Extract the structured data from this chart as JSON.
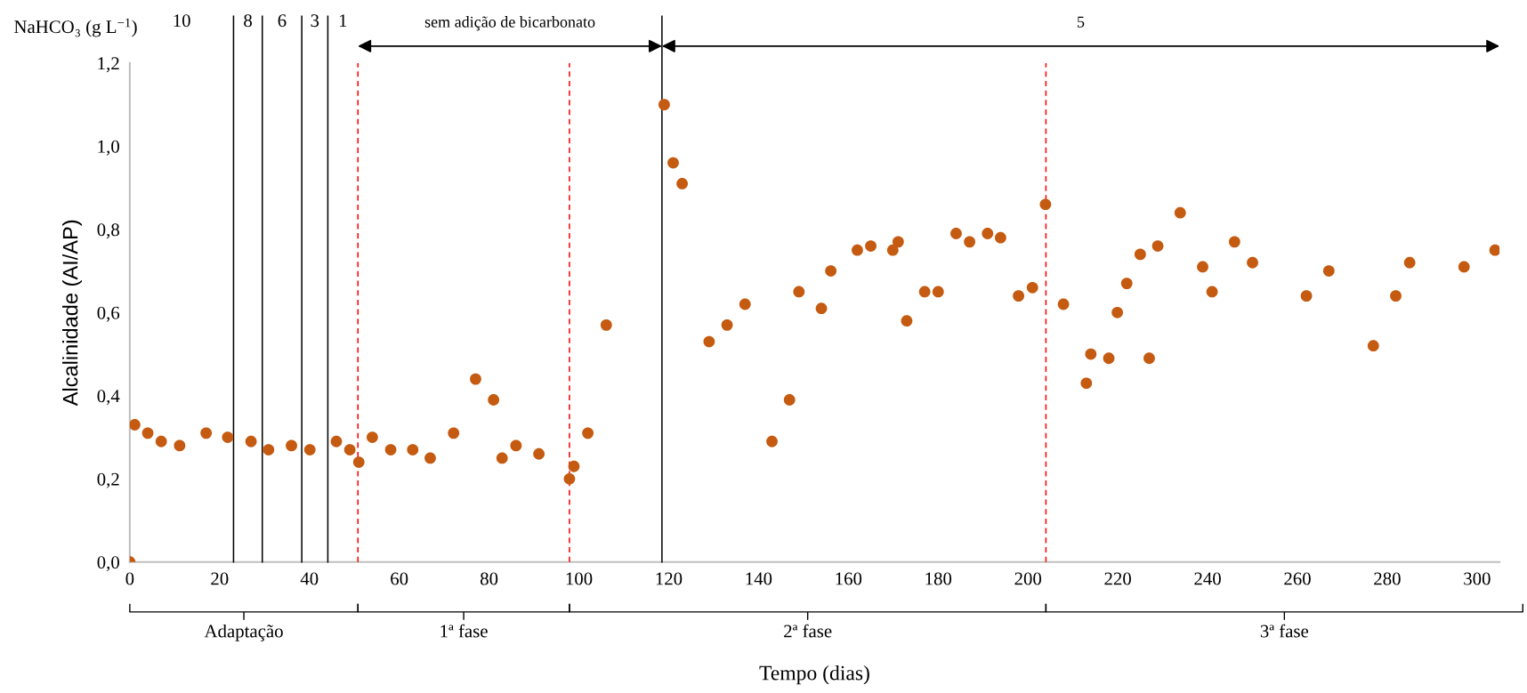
{
  "chart_data": {
    "type": "scatter",
    "xlabel": "Tempo (dias)",
    "ylabel": "Alcalinidade (AI/AP)",
    "x": [
      0,
      1.1,
      4.0,
      7.0,
      11.1,
      17.0,
      21.8,
      27.0,
      30.9,
      36.0,
      40.1,
      46.0,
      49.0,
      51.0,
      54.0,
      58.1,
      63.0,
      66.9,
      72.1,
      77.0,
      81.0,
      82.9,
      86.0,
      91.1,
      97.9,
      98.9,
      102.0,
      106.1,
      119.0,
      121.0,
      123.0,
      129.0,
      133.0,
      137.0,
      143.0,
      146.9,
      149.0,
      154.0,
      156.1,
      162.0,
      165.0,
      169.9,
      171.1,
      173.0,
      177.0,
      180.0,
      184.0,
      187.0,
      191.0,
      193.9,
      197.9,
      201.0,
      203.9,
      207.9,
      213.0,
      214.0,
      218.0,
      219.9,
      222.0,
      225.0,
      227.0,
      228.9,
      233.9,
      238.9,
      241.0,
      246.0,
      250.0,
      262.0,
      267.0,
      276.9,
      281.9,
      285.0,
      297.1,
      304.0
    ],
    "series": [
      {
        "color": "#c55a11",
        "values": [
          0.0,
          0.33,
          0.31,
          0.29,
          0.28,
          0.31,
          0.3,
          0.29,
          0.27,
          0.28,
          0.27,
          0.29,
          0.27,
          0.24,
          0.3,
          0.27,
          0.27,
          0.25,
          0.31,
          0.44,
          0.39,
          0.25,
          0.28,
          0.26,
          0.2,
          0.23,
          0.31,
          0.57,
          1.1,
          0.96,
          0.91,
          0.53,
          0.57,
          0.62,
          0.29,
          0.39,
          0.65,
          0.61,
          0.7,
          0.75,
          0.76,
          0.75,
          0.77,
          0.58,
          0.65,
          0.65,
          0.79,
          0.77,
          0.79,
          0.78,
          0.64,
          0.66,
          0.86,
          0.62,
          0.43,
          0.5,
          0.49,
          0.6,
          0.67,
          0.74,
          0.49,
          0.76,
          0.84,
          0.71,
          0.65,
          0.77,
          0.72,
          0.64,
          0.7,
          0.52,
          0.64,
          0.72,
          0.71,
          0.75
        ]
      }
    ],
    "marker": "circle",
    "xlim": [
      0,
      305
    ],
    "ylim": [
      0,
      1.2
    ],
    "xticks": [
      0,
      20,
      40,
      60,
      80,
      100,
      120,
      140,
      160,
      180,
      200,
      220,
      240,
      260,
      280,
      300
    ],
    "yticks": [
      {
        "value": 0,
        "label": "0,0"
      },
      {
        "value": 0.2,
        "label": "0,2"
      },
      {
        "value": 0.4,
        "label": "0,4"
      },
      {
        "value": 0.6,
        "label": "0,6"
      },
      {
        "value": 0.8,
        "label": "0,8"
      },
      {
        "value": 1.0,
        "label": "1,0"
      },
      {
        "value": 1.2,
        "label": "1,2"
      }
    ],
    "grid": false,
    "legend": false,
    "ref_lines": [
      {
        "axis": "x",
        "value": 23.1,
        "color": "#000000",
        "line_style": "solid"
      },
      {
        "axis": "x",
        "value": 29.5,
        "color": "#000000",
        "line_style": "solid"
      },
      {
        "axis": "x",
        "value": 38.3,
        "color": "#000000",
        "line_style": "solid"
      },
      {
        "axis": "x",
        "value": 44.1,
        "color": "#000000",
        "line_style": "solid"
      },
      {
        "axis": "x",
        "value": 118.5,
        "color": "#000000",
        "line_style": "solid"
      },
      {
        "axis": "x",
        "value": 50.8,
        "color": "#ff0000",
        "line_style": "dashed"
      },
      {
        "axis": "x",
        "value": 97.9,
        "color": "#ff0000",
        "line_style": "dashed"
      },
      {
        "axis": "x",
        "value": 204.0,
        "color": "#ff0000",
        "line_style": "dashed"
      }
    ],
    "annotations": [
      "NaHCO₃ (g L$^{−1}$)",
      "10",
      "8",
      "6",
      "3",
      "1",
      "sem adição de bicarbonato",
      "5",
      "Adaptação",
      "1ª fase",
      "2ª fase",
      "3ª fase"
    ]
  }
}
